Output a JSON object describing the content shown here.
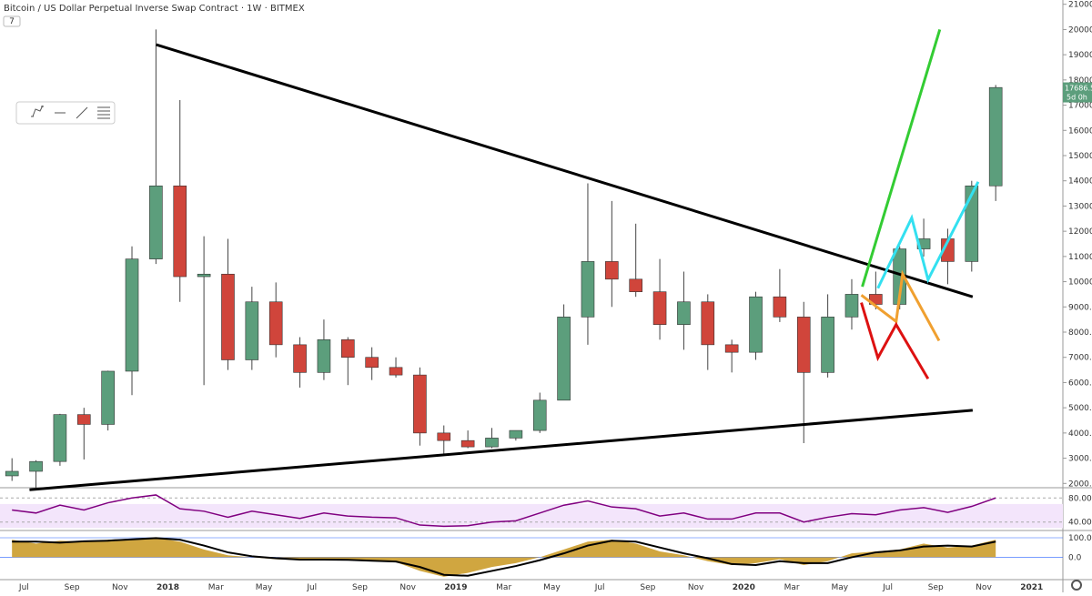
{
  "chart_data": {
    "type": "candlestick",
    "title": "Bitcoin / US Dollar Perpetual Inverse Swap Contract · 1W · BITMEX",
    "indicator_badge": "7",
    "countdown": "5d 0h",
    "last_price": 17686.5,
    "up_color": "#5c9e7c",
    "down_color": "#d0453b",
    "xlim": [
      5,
      49.3
    ],
    "xticks": [
      {
        "value": 6,
        "label": "Jul"
      },
      {
        "value": 8,
        "label": "Sep"
      },
      {
        "value": 10,
        "label": "Nov"
      },
      {
        "value": 12,
        "label": "2018"
      },
      {
        "value": 14,
        "label": "Mar"
      },
      {
        "value": 16,
        "label": "May"
      },
      {
        "value": 18,
        "label": "Jul"
      },
      {
        "value": 20,
        "label": "Sep"
      },
      {
        "value": 22,
        "label": "Nov"
      },
      {
        "value": 24,
        "label": "2019"
      },
      {
        "value": 26,
        "label": "Mar"
      },
      {
        "value": 28,
        "label": "May"
      },
      {
        "value": 30,
        "label": "Jul"
      },
      {
        "value": 32,
        "label": "Sep"
      },
      {
        "value": 34,
        "label": "Nov"
      },
      {
        "value": 36,
        "label": "2020"
      },
      {
        "value": 38,
        "label": "Mar"
      },
      {
        "value": 40,
        "label": "May"
      },
      {
        "value": 42,
        "label": "Jul"
      },
      {
        "value": 44,
        "label": "Sep"
      },
      {
        "value": 46,
        "label": "Nov"
      },
      {
        "value": 48,
        "label": "2021"
      }
    ],
    "ylim": [
      1830,
      21170
    ],
    "yticks": [
      {
        "value": 2000,
        "label": "2000.0"
      },
      {
        "value": 3000,
        "label": "3000.0"
      },
      {
        "value": 4000,
        "label": "4000.0"
      },
      {
        "value": 5000,
        "label": "5000.0"
      },
      {
        "value": 6000,
        "label": "6000.0"
      },
      {
        "value": 7000,
        "label": "7000.0"
      },
      {
        "value": 8000,
        "label": "8000.0"
      },
      {
        "value": 9000,
        "label": "9000.0"
      },
      {
        "value": 10000,
        "label": "10000.0"
      },
      {
        "value": 11000,
        "label": "11000.0"
      },
      {
        "value": 12000,
        "label": "12000.0"
      },
      {
        "value": 13000,
        "label": "13000.0"
      },
      {
        "value": 14000,
        "label": "14000.0"
      },
      {
        "value": 15000,
        "label": "15000.0"
      },
      {
        "value": 16000,
        "label": "16000.0"
      },
      {
        "value": 17000,
        "label": "17000.0"
      },
      {
        "value": 18000,
        "label": "18000.0"
      },
      {
        "value": 19000,
        "label": "19000.0"
      },
      {
        "value": 20000,
        "label": "20000.0"
      },
      {
        "value": 21000,
        "label": "21000.0"
      }
    ],
    "x": [
      5.5,
      6.5,
      7.5,
      8.5,
      9.5,
      10.5,
      11.5,
      12.5,
      13.5,
      14.5,
      15.5,
      16.5,
      17.5,
      18.5,
      19.5,
      20.5,
      21.5,
      22.5,
      23.5,
      24.5,
      25.5,
      26.5,
      27.5,
      28.5,
      29.5,
      30.5,
      31.5,
      32.5,
      33.5,
      34.5,
      35.5,
      36.5,
      37.5,
      38.5,
      39.5,
      40.5,
      41.5,
      42.5,
      43.5,
      44.5,
      45.5,
      46.5
    ],
    "open": [
      2300,
      2480,
      2870,
      4730,
      4340,
      6450,
      10900,
      13800,
      10200,
      10300,
      6900,
      9200,
      7500,
      6400,
      7700,
      7000,
      6600,
      6300,
      4000,
      3700,
      3450,
      3800,
      4100,
      5300,
      8600,
      10800,
      10100,
      9600,
      8300,
      9200,
      7500,
      7200,
      9400,
      8600,
      6400,
      8600,
      9500,
      9100,
      11300,
      11700,
      10800,
      13800
    ],
    "high": [
      3000,
      2920,
      4760,
      5000,
      6470,
      11400,
      20000,
      17200,
      11800,
      11700,
      9800,
      9970,
      7800,
      8500,
      7800,
      7400,
      7000,
      6600,
      4300,
      4100,
      4200,
      4100,
      5600,
      9100,
      13900,
      13200,
      12300,
      10900,
      10400,
      9500,
      7700,
      9600,
      10500,
      9200,
      9500,
      10100,
      10400,
      11400,
      12500,
      12100,
      14000,
      17800
    ],
    "low": [
      2100,
      1830,
      2700,
      2950,
      4100,
      5500,
      10700,
      9200,
      5900,
      6500,
      6500,
      7000,
      5800,
      6100,
      5900,
      6100,
      6200,
      3500,
      3100,
      3400,
      3400,
      3700,
      4000,
      5300,
      7500,
      9000,
      9400,
      7700,
      7300,
      6500,
      6400,
      6900,
      8400,
      3600,
      6200,
      8100,
      8900,
      8900,
      11000,
      9900,
      10400,
      13200
    ],
    "close": [
      2480,
      2870,
      4730,
      4340,
      6450,
      10900,
      13800,
      10200,
      10300,
      6900,
      9200,
      7500,
      6400,
      7700,
      7000,
      6600,
      6300,
      4000,
      3700,
      3450,
      3800,
      4100,
      5300,
      8600,
      10800,
      10100,
      9600,
      8300,
      9200,
      7500,
      7200,
      9400,
      8600,
      6400,
      8600,
      9500,
      9100,
      11300,
      11700,
      10800,
      13800,
      17700
    ],
    "drawings": [
      {
        "color": "#000000",
        "points": [
          [
            11.51,
            19400
          ],
          [
            45.54,
            9400
          ]
        ]
      },
      {
        "color": "#000000",
        "points": [
          [
            6.23,
            1750
          ],
          [
            45.54,
            4900
          ]
        ]
      },
      {
        "color": "#33cc33",
        "points": [
          [
            40.94,
            9800
          ],
          [
            44.17,
            20000
          ]
        ]
      },
      {
        "color": "#33e0f0",
        "points": [
          [
            41.59,
            9740
          ],
          [
            43.0,
            12530
          ],
          [
            43.68,
            10080
          ],
          [
            45.77,
            13960
          ]
        ]
      },
      {
        "color": "#f0a030",
        "points": [
          [
            40.9,
            9470
          ],
          [
            42.35,
            8420
          ],
          [
            42.62,
            10300
          ],
          [
            44.14,
            7660
          ]
        ]
      },
      {
        "color": "#dd1111",
        "points": [
          [
            40.9,
            9170
          ],
          [
            41.59,
            6980
          ],
          [
            42.35,
            8300
          ],
          [
            43.68,
            6150
          ]
        ]
      }
    ],
    "rsi": {
      "color": "#800080",
      "ylim": [
        29,
        94
      ],
      "yticks": [
        {
          "value": 80,
          "label": "80.00"
        },
        {
          "value": 40,
          "label": "40.00"
        }
      ],
      "values": [
        60,
        55,
        68,
        60,
        72,
        80,
        85,
        62,
        58,
        48,
        58,
        52,
        46,
        55,
        50,
        48,
        47,
        35,
        33,
        34,
        40,
        42,
        55,
        68,
        75,
        65,
        62,
        50,
        55,
        45,
        45,
        55,
        55,
        40,
        48,
        54,
        52,
        60,
        64,
        56,
        66,
        80
      ]
    },
    "oscillator": {
      "color": "#c8961e",
      "line_color": "#000000",
      "ylim": [
        -110,
        128
      ],
      "yticks": [
        {
          "value": 100,
          "label": "100.0"
        },
        {
          "value": 0,
          "label": "0.0"
        }
      ],
      "values": [
        90,
        70,
        85,
        80,
        90,
        95,
        100,
        80,
        40,
        10,
        0,
        -10,
        -15,
        -10,
        -15,
        -20,
        -25,
        -70,
        -100,
        -80,
        -50,
        -30,
        0,
        40,
        80,
        90,
        70,
        30,
        10,
        -20,
        -40,
        -30,
        -10,
        -40,
        -20,
        20,
        30,
        40,
        70,
        50,
        60,
        90
      ],
      "signal": [
        80,
        80,
        75,
        82,
        85,
        92,
        98,
        90,
        60,
        25,
        5,
        -5,
        -12,
        -12,
        -13,
        -18,
        -22,
        -50,
        -90,
        -95,
        -70,
        -45,
        -15,
        20,
        60,
        85,
        80,
        50,
        20,
        -5,
        -35,
        -40,
        -20,
        -30,
        -30,
        0,
        25,
        35,
        55,
        60,
        55,
        80
      ]
    }
  }
}
